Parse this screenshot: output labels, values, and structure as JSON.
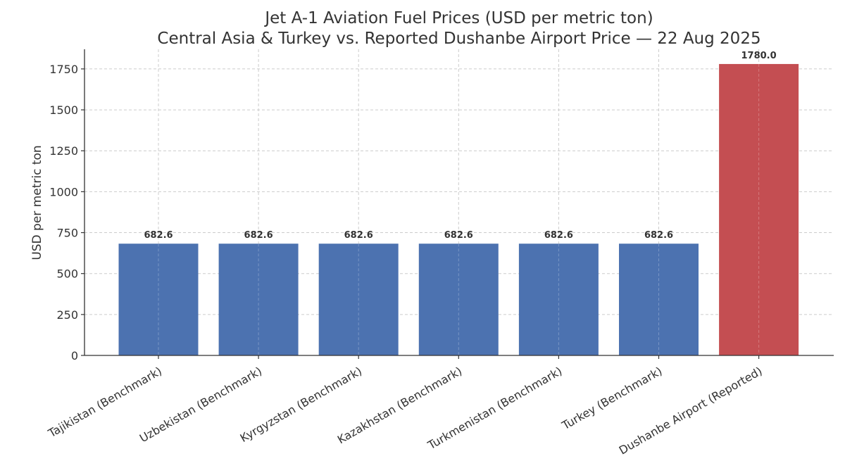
{
  "chart_data": {
    "type": "bar",
    "title_line1": "Jet A-1 Aviation Fuel Prices (USD per metric ton)",
    "title_line2": "Central Asia & Turkey vs. Reported Dushanbe Airport Price — 22 Aug 2025",
    "xlabel": "",
    "ylabel": "USD per metric ton",
    "ylim": [
      0,
      1870
    ],
    "yticks": [
      0,
      250,
      500,
      750,
      1000,
      1250,
      1500,
      1750
    ],
    "grid": true,
    "categories": [
      "Tajikistan (Benchmark)",
      "Uzbekistan (Benchmark)",
      "Kyrgyzstan (Benchmark)",
      "Kazakhstan (Benchmark)",
      "Turkmenistan (Benchmark)",
      "Turkey (Benchmark)",
      "Dushanbe Airport (Reported)"
    ],
    "values": [
      682.6,
      682.6,
      682.6,
      682.6,
      682.6,
      682.6,
      1780.0
    ],
    "data_labels": [
      "682.6",
      "682.6",
      "682.6",
      "682.6",
      "682.6",
      "682.6",
      "1780.0"
    ],
    "colors": [
      "#4c72b0",
      "#4c72b0",
      "#4c72b0",
      "#4c72b0",
      "#4c72b0",
      "#4c72b0",
      "#c44e52"
    ]
  }
}
